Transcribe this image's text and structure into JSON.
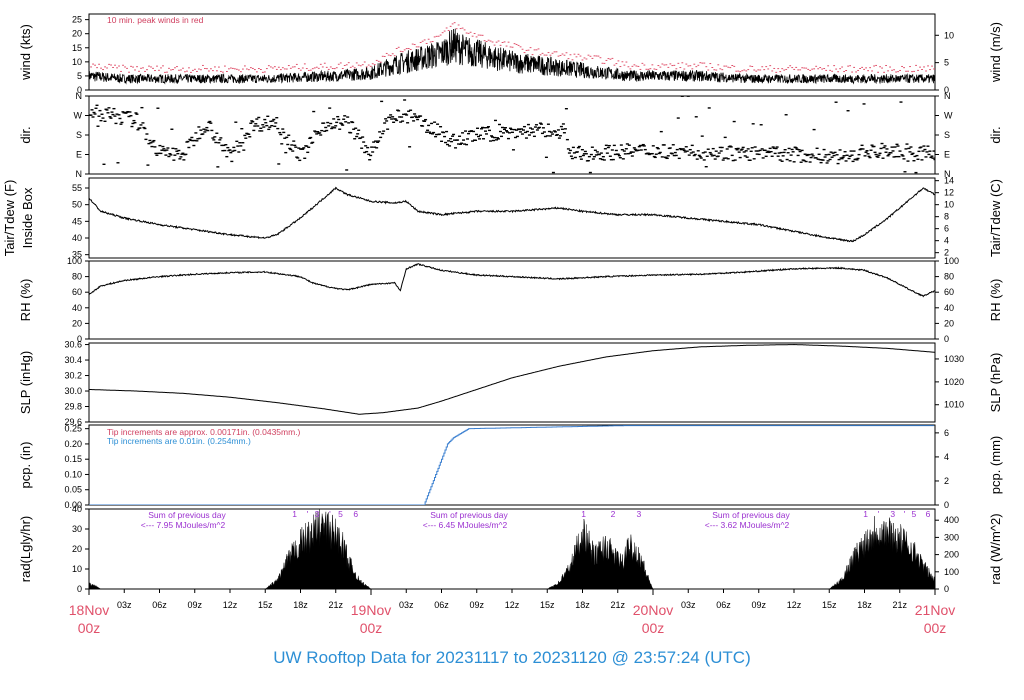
{
  "title": "UW Rooftop Data for 20231117  to  20231120 @ 23:57:24  (UTC)",
  "colors": {
    "axis": "#000000",
    "peak": "#e0506a",
    "pcp": "#3a7fd0",
    "annotation_peak": "#d04060",
    "annotation_tip": "#2d8fd5",
    "solar": "#9b30d0",
    "date": "#e0506a",
    "title": "#2d8fd5"
  },
  "time_axis": {
    "range_hours": [
      0,
      72
    ],
    "ticks": [
      {
        "h": 0,
        "label": "18Nov",
        "sub": "00z",
        "major": true
      },
      {
        "h": 3,
        "label": "03z"
      },
      {
        "h": 6,
        "label": "06z"
      },
      {
        "h": 9,
        "label": "09z"
      },
      {
        "h": 12,
        "label": "12z"
      },
      {
        "h": 15,
        "label": "15z"
      },
      {
        "h": 18,
        "label": "18z"
      },
      {
        "h": 21,
        "label": "21z"
      },
      {
        "h": 24,
        "label": "19Nov",
        "sub": "00z",
        "major": true
      },
      {
        "h": 27,
        "label": "03z"
      },
      {
        "h": 30,
        "label": "06z"
      },
      {
        "h": 33,
        "label": "09z"
      },
      {
        "h": 36,
        "label": "12z"
      },
      {
        "h": 39,
        "label": "15z"
      },
      {
        "h": 42,
        "label": "18z"
      },
      {
        "h": 45,
        "label": "21z"
      },
      {
        "h": 48,
        "label": "20Nov",
        "sub": "00z",
        "major": true
      },
      {
        "h": 51,
        "label": "03z"
      },
      {
        "h": 54,
        "label": "06z"
      },
      {
        "h": 57,
        "label": "09z"
      },
      {
        "h": 60,
        "label": "12z"
      },
      {
        "h": 63,
        "label": "15z"
      },
      {
        "h": 66,
        "label": "18z"
      },
      {
        "h": 69,
        "label": "21z"
      },
      {
        "h": 72,
        "label": "21Nov",
        "sub": "00z",
        "major": true
      }
    ]
  },
  "chart_data": [
    {
      "id": "wind",
      "type": "line",
      "ylabel": "wind (kts)",
      "ylabel_right": "wind (m/s)",
      "ylim": [
        0,
        27
      ],
      "yticks": [
        0,
        5,
        10,
        15,
        20,
        25
      ],
      "right_ticks": [
        {
          "v": 0,
          "label": "0"
        },
        {
          "v": 9.72,
          "label": "5"
        },
        {
          "v": 19.44,
          "label": "10"
        }
      ],
      "annotation": "10 min. peak winds in red",
      "series": [
        {
          "name": "wind",
          "kind": "spiky",
          "x": [
            0,
            3,
            6,
            9,
            12,
            15,
            18,
            21,
            24,
            26,
            28,
            30,
            31,
            32,
            33,
            34,
            36,
            38,
            40,
            42,
            44,
            46,
            48,
            52,
            56,
            60,
            64,
            68,
            72
          ],
          "y": [
            5,
            4,
            4,
            4,
            4,
            4,
            4.5,
            5,
            6,
            9,
            11,
            13,
            16,
            14,
            13,
            12,
            10,
            9,
            8,
            7,
            6,
            5,
            5,
            5,
            4,
            4,
            4,
            4,
            4
          ]
        },
        {
          "name": "peak",
          "kind": "dashes",
          "x": [
            0,
            3,
            6,
            9,
            12,
            15,
            18,
            21,
            24,
            26,
            28,
            30,
            31,
            32,
            33,
            34,
            36,
            38,
            40,
            42,
            44,
            46,
            48,
            52,
            56,
            60,
            64,
            68,
            72
          ],
          "y": [
            8,
            7,
            7,
            7,
            7,
            7,
            7.5,
            8,
            9,
            13,
            16,
            19,
            23,
            20,
            19,
            17,
            15,
            13,
            12,
            11,
            10,
            8,
            8,
            8,
            7,
            7,
            7,
            7,
            7
          ]
        }
      ]
    },
    {
      "id": "dir",
      "type": "scatter",
      "ylabel": "dir.",
      "ylabel_right": "dir.",
      "ylim": [
        0,
        360
      ],
      "tick_labels": [
        {
          "v": 360,
          "label": "N"
        },
        {
          "v": 270,
          "label": "W"
        },
        {
          "v": 180,
          "label": "S"
        },
        {
          "v": 90,
          "label": "E"
        },
        {
          "v": 0,
          "label": "N"
        }
      ],
      "series": [
        {
          "name": "dir",
          "x": [
            0,
            2,
            4,
            6,
            8,
            10,
            12,
            14,
            16,
            18,
            20,
            22,
            24,
            25.5,
            27,
            29,
            31,
            33,
            35,
            37,
            39,
            40.5,
            41,
            44,
            48,
            52,
            56,
            60,
            64,
            66,
            68,
            70,
            72
          ],
          "y": [
            290,
            270,
            250,
            100,
            90,
            240,
            80,
            230,
            240,
            80,
            230,
            240,
            90,
            250,
            270,
            220,
            150,
            180,
            190,
            200,
            200,
            200,
            90,
            100,
            110,
            100,
            95,
            90,
            80,
            100,
            110,
            90,
            100
          ]
        }
      ]
    },
    {
      "id": "temp",
      "type": "line",
      "ylabel": "Tair/Tdew (F)",
      "ylabel2": "Inside Box",
      "ylabel_right": "Tair/Tdew (C)",
      "ylim": [
        34,
        58
      ],
      "yticks": [
        35,
        40,
        45,
        50,
        55
      ],
      "right_ticks": [
        {
          "v": 35.6,
          "label": "2"
        },
        {
          "v": 39.2,
          "label": "4"
        },
        {
          "v": 42.8,
          "label": "6"
        },
        {
          "v": 46.4,
          "label": "8"
        },
        {
          "v": 50,
          "label": "10"
        },
        {
          "v": 53.6,
          "label": "12"
        },
        {
          "v": 57.2,
          "label": "14"
        }
      ],
      "series": [
        {
          "name": "tair",
          "x": [
            0,
            1,
            3,
            6,
            9,
            12,
            15,
            16,
            18,
            20,
            21,
            22,
            23,
            24,
            26,
            27,
            28,
            30,
            33,
            36,
            40,
            42,
            45,
            48,
            51,
            54,
            57,
            60,
            63,
            65,
            66,
            68,
            70,
            71,
            72
          ],
          "y": [
            52,
            48,
            46,
            44,
            42.5,
            41,
            40,
            41,
            46,
            52,
            55,
            53,
            52,
            51,
            50.5,
            51,
            48,
            47,
            48,
            48,
            49,
            48,
            47,
            47,
            46,
            45,
            44,
            42,
            40,
            39,
            41,
            46,
            52,
            55,
            53
          ]
        }
      ]
    },
    {
      "id": "rh",
      "type": "line",
      "ylabel": "RH (%)",
      "ylabel_right": "RH (%)",
      "ylim": [
        0,
        100
      ],
      "yticks": [
        0,
        20,
        40,
        60,
        80,
        100
      ],
      "right_ticks": [
        {
          "v": 0,
          "label": "0"
        },
        {
          "v": 20,
          "label": "20"
        },
        {
          "v": 40,
          "label": "40"
        },
        {
          "v": 60,
          "label": "60"
        },
        {
          "v": 80,
          "label": "80"
        },
        {
          "v": 100,
          "label": "100"
        }
      ],
      "series": [
        {
          "name": "rh",
          "x": [
            0,
            1,
            3,
            6,
            9,
            12,
            15,
            18,
            19,
            20,
            21,
            22,
            24,
            26,
            26.5,
            27,
            28,
            30,
            33,
            36,
            40,
            44,
            48,
            52,
            56,
            60,
            64,
            66,
            68,
            70,
            71,
            72
          ],
          "y": [
            57,
            68,
            75,
            80,
            83,
            85,
            86,
            80,
            72,
            68,
            65,
            63,
            70,
            72,
            62,
            90,
            96,
            88,
            82,
            80,
            77,
            80,
            82,
            83,
            86,
            90,
            91,
            88,
            78,
            62,
            55,
            62
          ]
        }
      ]
    },
    {
      "id": "slp",
      "type": "line",
      "ylabel": "SLP (inHg)",
      "ylabel_right": "SLP (hPa)",
      "ylim": [
        29.6,
        30.62
      ],
      "yticks": [
        29.6,
        29.8,
        30.0,
        30.2,
        30.4,
        30.6
      ],
      "right_ticks": [
        {
          "v": 29.823,
          "label": "1010"
        },
        {
          "v": 30.118,
          "label": "1020"
        },
        {
          "v": 30.414,
          "label": "1030"
        }
      ],
      "series": [
        {
          "name": "slp",
          "x": [
            0,
            4,
            8,
            12,
            16,
            20,
            23,
            25,
            28,
            30,
            33,
            36,
            40,
            44,
            48,
            52,
            56,
            60,
            64,
            68,
            72
          ],
          "y": [
            30.02,
            30.0,
            29.97,
            29.92,
            29.85,
            29.77,
            29.7,
            29.72,
            29.78,
            29.87,
            30.02,
            30.17,
            30.32,
            30.44,
            30.52,
            30.57,
            30.59,
            30.6,
            30.58,
            30.55,
            30.5
          ]
        }
      ]
    },
    {
      "id": "pcp",
      "type": "line",
      "ylabel": "pcp. (in)",
      "ylabel_right": "pcp. (mm)",
      "ylim": [
        0,
        0.262
      ],
      "yticks": [
        0.0,
        0.05,
        0.1,
        0.15,
        0.2,
        0.25
      ],
      "right_ticks": [
        {
          "v": 0,
          "label": "0"
        },
        {
          "v": 0.0787,
          "label": "2"
        },
        {
          "v": 0.1575,
          "label": "4"
        },
        {
          "v": 0.2362,
          "label": "6"
        }
      ],
      "annotations": [
        "Tip increments are approx. 0.00171in. (0.0435mm.)",
        "Tip increments are 0.01in. (0.254mm.)"
      ],
      "series": [
        {
          "name": "pcp",
          "x": [
            0,
            28.5,
            29,
            30,
            30.5,
            31,
            32.3,
            45.6,
            72
          ],
          "y": [
            0,
            0,
            0.05,
            0.15,
            0.2,
            0.22,
            0.25,
            0.26,
            0.26
          ]
        }
      ]
    },
    {
      "id": "rad",
      "type": "area",
      "ylabel": "rad(Lgly/hr)",
      "ylabel_right": "rad (W/m^2)",
      "ylim": [
        0,
        40
      ],
      "yticks": [
        0,
        10,
        20,
        30,
        40
      ],
      "right_ticks": [
        {
          "v": 0,
          "label": "0"
        },
        {
          "v": 8.6,
          "label": "100"
        },
        {
          "v": 17.2,
          "label": "200"
        },
        {
          "v": 25.8,
          "label": "300"
        },
        {
          "v": 34.4,
          "label": "400"
        }
      ],
      "daily_notes": [
        {
          "h": 8,
          "l1": "Sum of previous day",
          "l2": "<--- 7.95 MJoules/m^2",
          "marks": [
            {
              "h": 17.5,
              "t": "1"
            },
            {
              "h": 18.6,
              "t": "'"
            },
            {
              "h": 19.4,
              "t": "3"
            },
            {
              "h": 20.5,
              "t": "'"
            },
            {
              "h": 21.4,
              "t": "5"
            },
            {
              "h": 22.7,
              "t": "6"
            }
          ]
        },
        {
          "h": 32,
          "l1": "Sum of previous day",
          "l2": "<--- 6.45 MJoules/m^2",
          "marks": [
            {
              "h": 42.1,
              "t": "1"
            },
            {
              "h": 44.6,
              "t": "2"
            },
            {
              "h": 46.8,
              "t": "3"
            }
          ]
        },
        {
          "h": 56,
          "l1": "Sum of previous day",
          "l2": "<--- 3.62 MJoules/m^2",
          "marks": [
            {
              "h": 66.1,
              "t": "1"
            },
            {
              "h": 67.2,
              "t": "'"
            },
            {
              "h": 68.4,
              "t": "3"
            },
            {
              "h": 69.4,
              "t": "'"
            },
            {
              "h": 70.2,
              "t": "5"
            },
            {
              "h": 71.4,
              "t": "6"
            }
          ]
        }
      ],
      "series": [
        {
          "name": "rad",
          "x": [
            0,
            0.5,
            1,
            15,
            16,
            17,
            18,
            19,
            19.5,
            20,
            21,
            21.8,
            22,
            23,
            24,
            39,
            40,
            41,
            42,
            43,
            44,
            45,
            45.5,
            46,
            47,
            47.5,
            48,
            63,
            64,
            65,
            66,
            67,
            68,
            69,
            70,
            71,
            72
          ],
          "y": [
            3,
            2,
            0,
            0,
            5,
            18,
            28,
            33,
            38,
            37,
            33,
            24,
            18,
            5,
            0,
            0,
            4,
            14,
            35,
            20,
            26,
            18,
            16,
            28,
            18,
            8,
            0,
            0,
            5,
            18,
            28,
            36,
            34,
            30,
            25,
            14,
            5
          ]
        }
      ]
    }
  ]
}
